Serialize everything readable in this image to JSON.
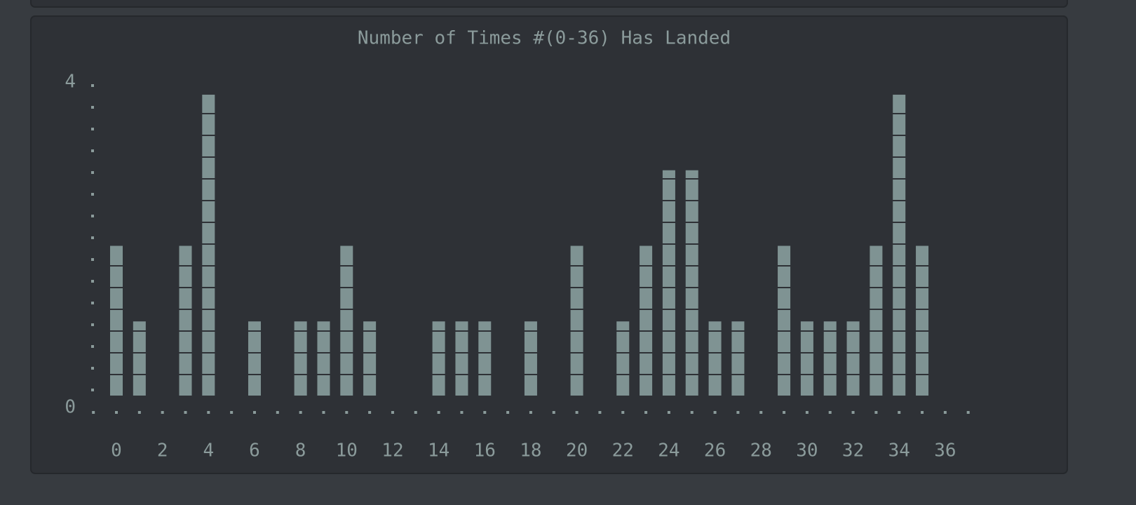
{
  "chart_data": {
    "type": "bar",
    "title": "Number of Times #(0-36) Has Landed",
    "categories": [
      "0",
      null,
      "2",
      null,
      "4",
      null,
      "6",
      null,
      "8",
      null,
      "10",
      null,
      "12",
      null,
      "14",
      null,
      "16",
      null,
      "18",
      null,
      "20",
      null,
      "22",
      null,
      "24",
      null,
      "26",
      null,
      "28",
      null,
      "30",
      null,
      "32",
      null,
      "34",
      null,
      "36"
    ],
    "values": [
      2,
      1,
      0,
      2,
      4,
      0,
      1,
      0,
      1,
      1,
      2,
      1,
      0,
      0,
      1,
      1,
      1,
      0,
      1,
      0,
      2,
      0,
      1,
      2,
      3,
      3,
      1,
      1,
      0,
      2,
      1,
      1,
      1,
      2,
      4,
      2,
      0
    ],
    "color": "#7f9393",
    "ylim": [
      0,
      4
    ],
    "yticks": [
      0,
      4
    ]
  }
}
